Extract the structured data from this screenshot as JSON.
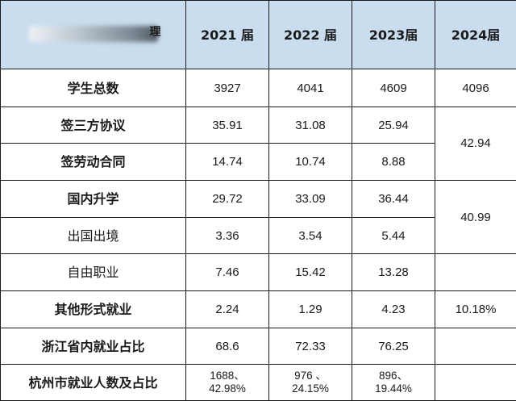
{
  "header": {
    "corner_label_tail": "理",
    "years": [
      "2021 届",
      "2022 届",
      "2023届",
      "2024届"
    ]
  },
  "rows": {
    "total_students": {
      "label": "学生总数",
      "v2021": "3927",
      "v2022": "4041",
      "v2023": "4609",
      "v2024": "4096"
    },
    "tripartite": {
      "label": "签三方协议",
      "v2021": "35.91",
      "v2022": "31.08",
      "v2023": "25.94"
    },
    "labor_contract": {
      "label": "签劳动合同",
      "v2021": "14.74",
      "v2022": "10.74",
      "v2023": "8.88"
    },
    "merged_2024_employment": "42.94",
    "domestic_study": {
      "label": "国内升学",
      "v2021": "29.72",
      "v2022": "33.09",
      "v2023": "36.44"
    },
    "study_abroad": {
      "label": "出国出境",
      "v2021": "3.36",
      "v2022": "3.54",
      "v2023": "5.44"
    },
    "merged_2024_study": "40.99",
    "freelance": {
      "label": "自由职业",
      "v2021": "7.46",
      "v2022": "15.42",
      "v2023": "13.28"
    },
    "other_employment": {
      "label": "其他形式就业",
      "v2021": "2.24",
      "v2022": "1.29",
      "v2023": "4.23",
      "v2024": "10.18%"
    },
    "zhejiang_ratio": {
      "label": "浙江省内就业占比",
      "v2021": "68.6",
      "v2022": "72.33",
      "v2023": "76.25",
      "v2024": ""
    },
    "hangzhou": {
      "label": "杭州市就业人数及占比",
      "v2021_a": "1688、",
      "v2021_b": "42.98%",
      "v2022_a": "976 、",
      "v2022_b": "24.15%",
      "v2023_a": "896、",
      "v2023_b": "19.44%",
      "v2024": ""
    }
  }
}
